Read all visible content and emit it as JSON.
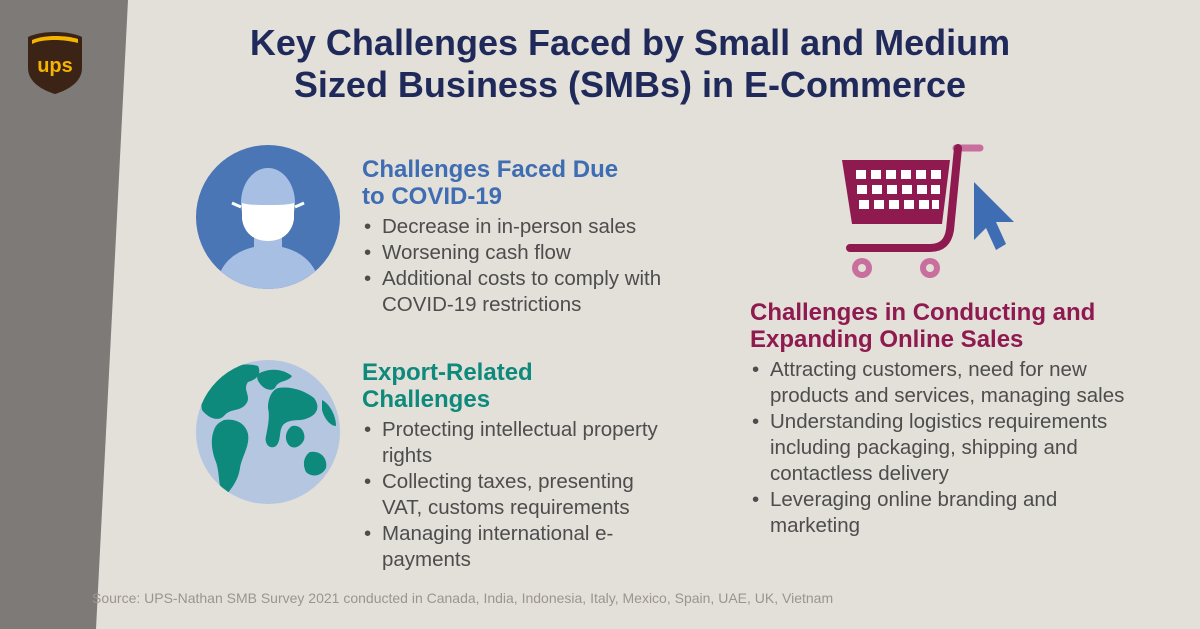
{
  "brand": {
    "logo_text": "ups",
    "color_brown": "#3b2415",
    "color_gold": "#f5b400"
  },
  "title": {
    "line1": "Key Challenges Faced by Small and Medium",
    "line2": "Sized Business (SMBs) in E-Commerce",
    "color": "#1f2a5a"
  },
  "covid": {
    "heading_line1": "Challenges Faced Due",
    "heading_line2": "to COVID-19",
    "color": "#3f6db3",
    "items": [
      "Decrease in in-person sales",
      "Worsening cash flow",
      "Additional costs to comply with COVID-19 restrictions"
    ]
  },
  "export": {
    "heading": "Export-Related Challenges",
    "color": "#0d8a7b",
    "items": [
      "Protecting intellectual property rights",
      "Collecting taxes, presenting VAT, customs requirements",
      "Managing international e-payments"
    ]
  },
  "online": {
    "heading_line1": "Challenges in Conducting and",
    "heading_line2": "Expanding Online Sales",
    "color": "#8e1a4f",
    "items": [
      "Attracting customers, need for new products and services, managing sales",
      "Understanding logistics requirements including packaging, shipping and contactless delivery",
      "Leveraging online branding and marketing"
    ]
  },
  "icons": {
    "masked_person": "masked-person-icon",
    "globe": "globe-icon",
    "cart": "shopping-cart-icon",
    "cursor": "cursor-arrow-icon"
  },
  "source": "Source: UPS-Nathan SMB Survey 2021 conducted in Canada, India, Indonesia, Italy, Mexico, Spain, UAE, UK, Vietnam"
}
